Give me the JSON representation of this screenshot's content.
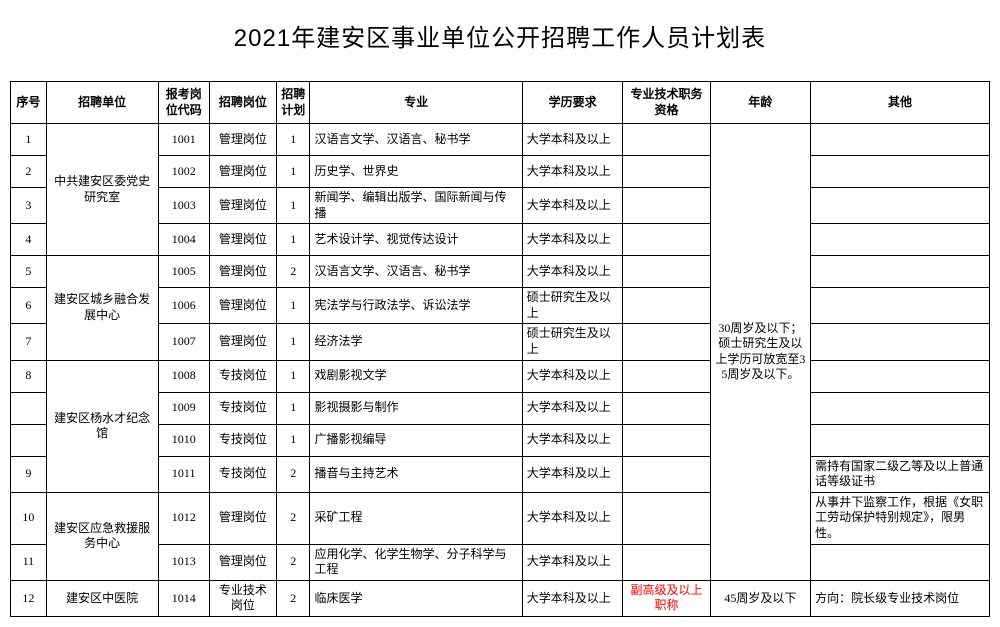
{
  "title": "2021年建安区事业单位公开招聘工作人员计划表",
  "headers": {
    "idx": "序号",
    "unit": "招聘单位",
    "code": "报考岗位代码",
    "post": "招聘岗位",
    "plan": "招聘计划",
    "major": "专业",
    "edu": "学历要求",
    "qual": "专业技术职务资格",
    "age": "年龄",
    "other": "其他"
  },
  "age_group1": "30周岁及以下；硕士研究生及以上学历可放宽至35周岁及以下。",
  "rows": [
    {
      "idx": "1",
      "unit": "中共建安区委党史研究室",
      "code": "1001",
      "post": "管理岗位",
      "plan": "1",
      "major": "汉语言文学、汉语言、秘书学",
      "edu": "大学本科及以上",
      "qual": "",
      "other": ""
    },
    {
      "idx": "2",
      "unit": "",
      "code": "1002",
      "post": "管理岗位",
      "plan": "1",
      "major": "历史学、世界史",
      "edu": "大学本科及以上",
      "qual": "",
      "other": ""
    },
    {
      "idx": "3",
      "unit": "",
      "code": "1003",
      "post": "管理岗位",
      "plan": "1",
      "major": "新闻学、编辑出版学、国际新闻与传播",
      "edu": "大学本科及以上",
      "qual": "",
      "other": ""
    },
    {
      "idx": "4",
      "unit": "",
      "code": "1004",
      "post": "管理岗位",
      "plan": "1",
      "major": "艺术设计学、视觉传达设计",
      "edu": "大学本科及以上",
      "qual": "",
      "other": ""
    },
    {
      "idx": "5",
      "unit": "建安区城乡融合发展中心",
      "code": "1005",
      "post": "管理岗位",
      "plan": "2",
      "major": "汉语言文学、汉语言、秘书学",
      "edu": "大学本科及以上",
      "qual": "",
      "other": ""
    },
    {
      "idx": "6",
      "unit": "",
      "code": "1006",
      "post": "管理岗位",
      "plan": "1",
      "major": "宪法学与行政法学、诉讼法学",
      "edu": "硕士研究生及以上",
      "qual": "",
      "other": ""
    },
    {
      "idx": "7",
      "unit": "",
      "code": "1007",
      "post": "管理岗位",
      "plan": "1",
      "major": "经济法学",
      "edu": "硕士研究生及以上",
      "qual": "",
      "other": ""
    },
    {
      "idx": "8",
      "unit": "建安区杨水才纪念馆",
      "code": "1008",
      "post": "专技岗位",
      "plan": "1",
      "major": "戏剧影视文学",
      "edu": "大学本科及以上",
      "qual": "",
      "other": ""
    },
    {
      "idx": "",
      "unit": "",
      "code": "1009",
      "post": "专技岗位",
      "plan": "1",
      "major": "影视摄影与制作",
      "edu": "大学本科及以上",
      "qual": "",
      "other": ""
    },
    {
      "idx": "",
      "unit": "",
      "code": "1010",
      "post": "专技岗位",
      "plan": "1",
      "major": "广播影视编导",
      "edu": "大学本科及以上",
      "qual": "",
      "other": ""
    },
    {
      "idx": "9",
      "unit": "",
      "code": "1011",
      "post": "专技岗位",
      "plan": "2",
      "major": "播音与主持艺术",
      "edu": "大学本科及以上",
      "qual": "",
      "other": "需持有国家二级乙等及以上普通话等级证书"
    },
    {
      "idx": "10",
      "unit": "建安区应急救援服务中心",
      "code": "1012",
      "post": "管理岗位",
      "plan": "2",
      "major": "采矿工程",
      "edu": "大学本科及以上",
      "qual": "",
      "other": "从事井下监察工作，根据《女职工劳动保护特别规定》，限男性。"
    },
    {
      "idx": "11",
      "unit": "",
      "code": "1013",
      "post": "管理岗位",
      "plan": "2",
      "major": "应用化学、化学生物学、分子科学与工程",
      "edu": "大学本科及以上",
      "qual": "",
      "other": ""
    }
  ],
  "row12": {
    "idx": "12",
    "unit": "建安区中医院",
    "code": "1014",
    "post": "专业技术岗位",
    "plan": "2",
    "major": "临床医学",
    "edu": "大学本科及以上",
    "qual": "副高级及以上职称",
    "age": "45周岁及以下",
    "other": "方向：院长级专业技术岗位"
  }
}
